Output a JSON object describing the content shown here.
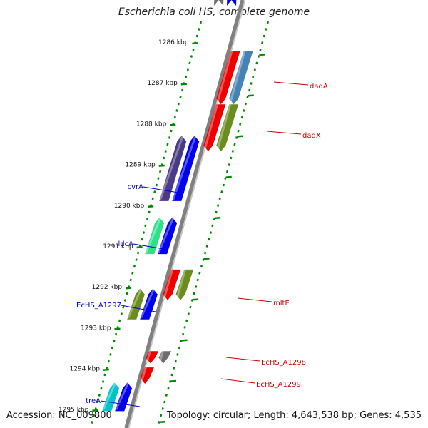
{
  "header": {
    "title": "Escherichia coli HS, complete genome"
  },
  "footer": {
    "accession": "Accession: NC_009800",
    "topology": "Topology: circular; Length: 4,643,538 bp; Genes: 4,535"
  },
  "colors": {
    "forward_label": "#0000cc",
    "reverse_label": "#cc0000",
    "tick": "#008800",
    "backbone": "#808080"
  },
  "map": {
    "ticks": [
      {
        "kbp": 1286,
        "label": "1286 kbp"
      },
      {
        "kbp": 1287,
        "label": "1287 kbp"
      },
      {
        "kbp": 1288,
        "label": "1288 kbp"
      },
      {
        "kbp": 1289,
        "label": "1289 kbp"
      },
      {
        "kbp": 1290,
        "label": "1290 kbp"
      },
      {
        "kbp": 1291,
        "label": "1291 kbp"
      },
      {
        "kbp": 1292,
        "label": "1292 kbp"
      },
      {
        "kbp": 1293,
        "label": "1293 kbp"
      },
      {
        "kbp": 1294,
        "label": "1294 kbp"
      },
      {
        "kbp": 1295,
        "label": "1295 kbp"
      }
    ],
    "forward_genes": [
      {
        "name": "",
        "start": 1285.0,
        "end": 1285.4,
        "color": "#6e6e6e"
      },
      {
        "name": "",
        "start": 1285.0,
        "end": 1285.4,
        "color": "#0000ee",
        "strand_row": "orf"
      },
      {
        "name": "cvrA",
        "start": 1288.75,
        "end": 1290.35,
        "color": "#4b3a84"
      },
      {
        "name": "",
        "start": 1288.75,
        "end": 1290.35,
        "color": "#0000ee",
        "strand_row": "orf"
      },
      {
        "name": "ldcA",
        "start": 1290.75,
        "end": 1291.65,
        "color": "#2de08a"
      },
      {
        "name": "",
        "start": 1290.75,
        "end": 1291.65,
        "color": "#0000ee",
        "strand_row": "orf"
      },
      {
        "name": "EcHS_A1297",
        "start": 1292.5,
        "end": 1293.25,
        "color": "#6b8c1f"
      },
      {
        "name": "",
        "start": 1292.5,
        "end": 1293.25,
        "color": "#0000ee",
        "strand_row": "orf"
      },
      {
        "name": "treA",
        "start": 1294.8,
        "end": 1295.5,
        "color": "#00c4c8"
      },
      {
        "name": "",
        "start": 1294.8,
        "end": 1295.5,
        "color": "#0000ee",
        "strand_row": "orf"
      }
    ],
    "reverse_genes": [
      {
        "name": "dadA",
        "start": 1286.4,
        "end": 1287.7,
        "color": "#4682b4"
      },
      {
        "name": "",
        "start": 1286.4,
        "end": 1287.7,
        "color": "#ee0000",
        "strand_row": "orf"
      },
      {
        "name": "dadX",
        "start": 1287.7,
        "end": 1288.85,
        "color": "#6b8c1f"
      },
      {
        "name": "",
        "start": 1287.7,
        "end": 1288.85,
        "color": "#ee0000",
        "strand_row": "orf"
      },
      {
        "name": "mltE",
        "start": 1291.75,
        "end": 1292.5,
        "color": "#6b8c1f"
      },
      {
        "name": "",
        "start": 1291.75,
        "end": 1292.5,
        "color": "#ee0000",
        "strand_row": "orf"
      },
      {
        "name": "EcHS_A1298",
        "start": 1293.75,
        "end": 1294.05,
        "color": "#6e6e6e"
      },
      {
        "name": "",
        "start": 1293.75,
        "end": 1294.05,
        "color": "#ee0000",
        "strand_row": "orf"
      },
      {
        "name": "EcHS_A1299",
        "start": 1294.15,
        "end": 1294.55,
        "color": "#ee0000",
        "strand_row": "orf"
      }
    ]
  }
}
